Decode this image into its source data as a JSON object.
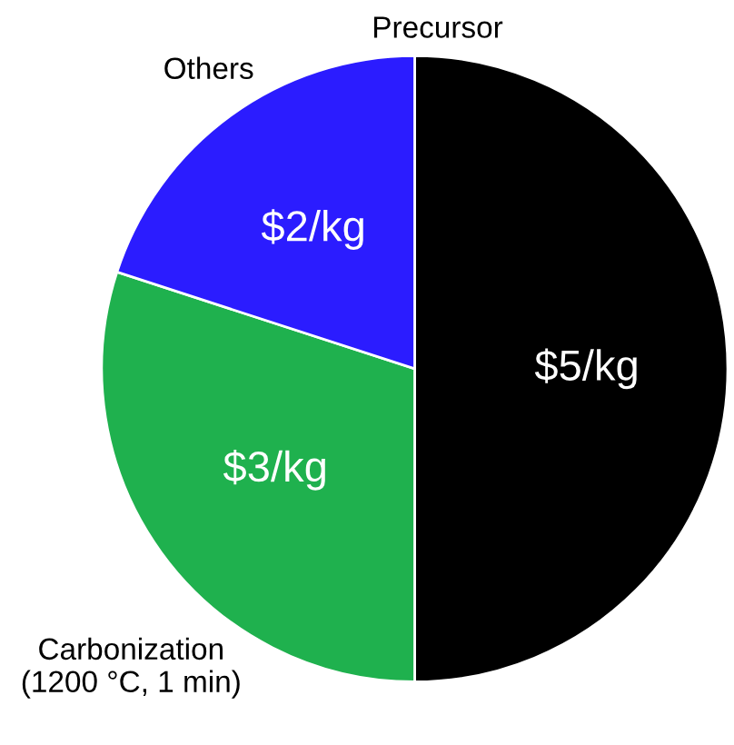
{
  "chart_data": {
    "type": "pie",
    "categories": [
      "Precursor",
      "Carbonization\n(1200 °C, 1 min)",
      "Others"
    ],
    "values": [
      5,
      3,
      2
    ],
    "value_labels": [
      "$5/kg",
      "$3/kg",
      "$2/kg"
    ],
    "colors": [
      "#000000",
      "#1fb14e",
      "#2b1cff"
    ]
  }
}
